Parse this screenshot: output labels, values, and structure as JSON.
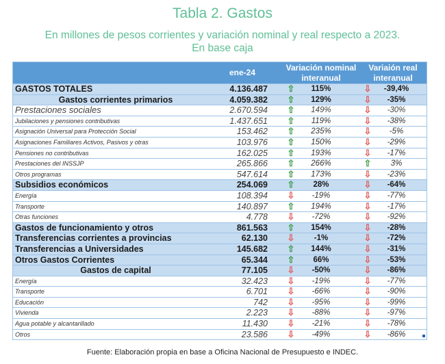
{
  "title": "Tabla 2. Gastos",
  "subtitle_line1": "En millones de pesos corrientes y variación nominal y real respecto a 2023.",
  "subtitle_line2": "En base caja",
  "headers": {
    "col1": "ene-24",
    "col2_l1": "Variación nominal",
    "col2_l2": "interanual",
    "col3_l1": "Variaión real",
    "col3_l2": "interanual"
  },
  "colors": {
    "header": "#5b9bd5",
    "highlight": "#c6dcf1",
    "up": "#3a9a45",
    "down": "#e05a5a",
    "title": "#5fbf96"
  },
  "rows": [
    {
      "label": "GASTOS TOTALES",
      "value": "4.136.487",
      "nom_dir": "up",
      "nom": "115%",
      "real_dir": "down",
      "real": "-39,4%",
      "style": "b blue"
    },
    {
      "label": "Gastos corrientes primarios",
      "value": "4.059.382",
      "nom_dir": "up",
      "nom": "129%",
      "real_dir": "down",
      "real": "-35%",
      "style": "b blue c"
    },
    {
      "label": "Prestaciones sociales",
      "value": "2.670.594",
      "nom_dir": "up",
      "nom": "149%",
      "real_dir": "down",
      "real": "-30%",
      "style": "l"
    },
    {
      "label": "Jubilaciones y pensiones contributivas",
      "value": "1.437.651",
      "nom_dir": "up",
      "nom": "119%",
      "real_dir": "down",
      "real": "-38%",
      "style": ""
    },
    {
      "label": "Asignación Universal para Protección Social",
      "value": "153.462",
      "nom_dir": "up",
      "nom": "235%",
      "real_dir": "down",
      "real": "-5%",
      "style": ""
    },
    {
      "label": "Asignaciones Familiares Activos, Pasivos y otras",
      "value": "103.976",
      "nom_dir": "up",
      "nom": "150%",
      "real_dir": "down",
      "real": "-29%",
      "style": ""
    },
    {
      "label": "Pensiones no contributivas",
      "value": "162.025",
      "nom_dir": "up",
      "nom": "193%",
      "real_dir": "down",
      "real": "-17%",
      "style": ""
    },
    {
      "label": "Prestaciones del INSSJP",
      "value": "265.866",
      "nom_dir": "up",
      "nom": "266%",
      "real_dir": "up",
      "real": "3%",
      "style": ""
    },
    {
      "label": "Otros programas",
      "value": "547.614",
      "nom_dir": "up",
      "nom": "173%",
      "real_dir": "down",
      "real": "-23%",
      "style": ""
    },
    {
      "label": "Subsidios económicos",
      "value": "254.069",
      "nom_dir": "up",
      "nom": "28%",
      "real_dir": "down",
      "real": "-64%",
      "style": "b blue"
    },
    {
      "label": "Energía",
      "value": "108.394",
      "nom_dir": "down",
      "nom": "-19%",
      "real_dir": "down",
      "real": "-77%",
      "style": ""
    },
    {
      "label": "Transporte",
      "value": "140.897",
      "nom_dir": "up",
      "nom": "194%",
      "real_dir": "down",
      "real": "-17%",
      "style": ""
    },
    {
      "label": "Otras funciones",
      "value": "4.778",
      "nom_dir": "down",
      "nom": "-72%",
      "real_dir": "down",
      "real": "-92%",
      "style": ""
    },
    {
      "label": "Gastos de funcionamiento y otros",
      "value": "861.563",
      "nom_dir": "up",
      "nom": "154%",
      "real_dir": "down",
      "real": "-28%",
      "style": "b blue"
    },
    {
      "label": "Transferencias corrientes a provincias",
      "value": "62.130",
      "nom_dir": "down",
      "nom": "-1%",
      "real_dir": "down",
      "real": "-72%",
      "style": "b blue"
    },
    {
      "label": "Transferencias a Universidades",
      "value": "145.682",
      "nom_dir": "up",
      "nom": "144%",
      "real_dir": "down",
      "real": "-31%",
      "style": "b blue"
    },
    {
      "label": "Otros Gastos Corrientes",
      "value": "65.344",
      "nom_dir": "up",
      "nom": "66%",
      "real_dir": "down",
      "real": "-53%",
      "style": "b blue"
    },
    {
      "label": "Gastos de capital",
      "value": "77.105",
      "nom_dir": "down",
      "nom": "-50%",
      "real_dir": "down",
      "real": "-86%",
      "style": "b blue c"
    },
    {
      "label": "Energía",
      "value": "32.423",
      "nom_dir": "down",
      "nom": "-19%",
      "real_dir": "down",
      "real": "-77%",
      "style": ""
    },
    {
      "label": "Transporte",
      "value": "6.701",
      "nom_dir": "down",
      "nom": "-66%",
      "real_dir": "down",
      "real": "-90%",
      "style": ""
    },
    {
      "label": "Educación",
      "value": "742",
      "nom_dir": "down",
      "nom": "-95%",
      "real_dir": "down",
      "real": "-99%",
      "style": ""
    },
    {
      "label": "Vivienda",
      "value": "2.223",
      "nom_dir": "down",
      "nom": "-88%",
      "real_dir": "down",
      "real": "-97%",
      "style": ""
    },
    {
      "label": "Agua potable y alcantarillado",
      "value": "11.430",
      "nom_dir": "down",
      "nom": "-21%",
      "real_dir": "down",
      "real": "-78%",
      "style": ""
    },
    {
      "label": "Otros",
      "value": "23.586",
      "nom_dir": "down",
      "nom": "-49%",
      "real_dir": "down",
      "real": "-86%",
      "style": ""
    }
  ],
  "source": "Fuente: Elaboración propia en base a Oficina Nacional de Presupuesto e INDEC."
}
